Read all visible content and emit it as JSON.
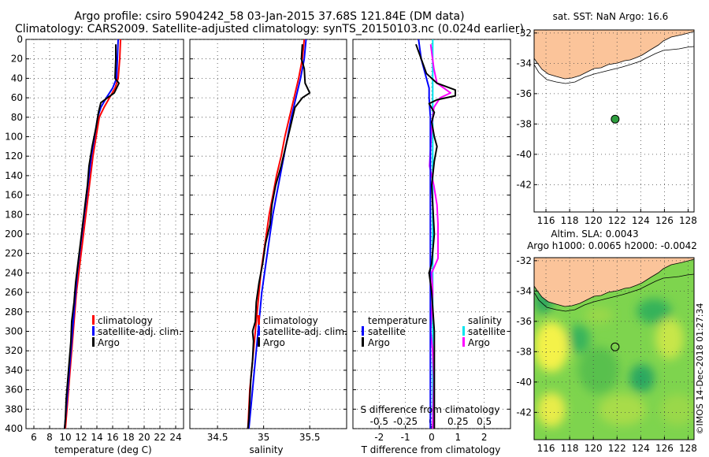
{
  "header": {
    "title_line1": "Argo profile: csiro 5904242_58 03-Jan-2015 37.68S 121.84E (DM data)",
    "title_line2": "Climatology: CARS2009. Satellite-adjusted climatology: synTS_20150103.nc (0.024d earlier)"
  },
  "watermark": "©IMOS 14-Dec-2018 01:27:34",
  "colors": {
    "climatology": "#ff0000",
    "satellite": "#0000ff",
    "argo": "#000000",
    "salinity_satellite": "#00e5ee",
    "salinity_argo": "#ff00ff",
    "land": "#fbc49a",
    "sea_sst": "#ffffff"
  },
  "chart_data": [
    {
      "id": "temperature",
      "type": "line",
      "xlabel": "temperature (deg C)",
      "ylabel": "",
      "xlim": [
        5,
        25
      ],
      "ylim": [
        400,
        0
      ],
      "xticks": [
        6,
        8,
        10,
        12,
        14,
        16,
        18,
        20,
        22,
        24
      ],
      "yticks": [
        0,
        20,
        40,
        60,
        80,
        100,
        120,
        140,
        160,
        180,
        200,
        220,
        240,
        260,
        280,
        300,
        320,
        340,
        360,
        380,
        400
      ],
      "grid": true,
      "legend": [
        "climatology",
        "satellite-adj. clim.",
        "Argo"
      ],
      "series": [
        {
          "name": "climatology",
          "color": "#ff0000",
          "depth": [
            0,
            20,
            40,
            50,
            60,
            70,
            80,
            100,
            120,
            140,
            160,
            180,
            200,
            220,
            240,
            260,
            280,
            300,
            320,
            340,
            360,
            380,
            400
          ],
          "values": [
            17.0,
            16.9,
            16.7,
            16.3,
            15.6,
            14.9,
            14.3,
            13.9,
            13.5,
            13.2,
            12.9,
            12.6,
            12.3,
            12.0,
            11.7,
            11.4,
            11.2,
            11.0,
            10.8,
            10.6,
            10.4,
            10.2,
            10.0
          ]
        },
        {
          "name": "satellite-adj. clim.",
          "color": "#0000ff",
          "depth": [
            0,
            20,
            40,
            50,
            60,
            70,
            80,
            100,
            120,
            140,
            160,
            180,
            200,
            220,
            240,
            260,
            280,
            300,
            320,
            340,
            360,
            380,
            400
          ],
          "values": [
            16.7,
            16.6,
            16.5,
            16.0,
            15.2,
            14.5,
            14.1,
            13.7,
            13.3,
            13.0,
            12.7,
            12.4,
            12.1,
            11.8,
            11.5,
            11.3,
            11.1,
            10.9,
            10.7,
            10.5,
            10.3,
            10.1,
            9.9
          ]
        },
        {
          "name": "Argo",
          "color": "#000000",
          "depth": [
            5,
            20,
            40,
            45,
            55,
            65,
            75,
            90,
            110,
            130,
            150,
            170,
            190,
            210,
            230,
            250,
            270,
            290,
            310,
            330,
            350,
            370,
            390,
            400
          ],
          "values": [
            16.4,
            16.4,
            16.3,
            16.8,
            16.2,
            14.5,
            14.2,
            13.9,
            13.4,
            13.0,
            12.8,
            12.5,
            12.2,
            11.9,
            11.6,
            11.3,
            11.1,
            10.8,
            10.7,
            10.5,
            10.3,
            10.1,
            10.0,
            9.9
          ]
        }
      ]
    },
    {
      "id": "salinity",
      "type": "line",
      "xlabel": "salinity",
      "ylabel": "",
      "xlim": [
        34.2,
        35.9
      ],
      "ylim": [
        400,
        0
      ],
      "xticks": [
        34.5,
        35,
        35.5
      ],
      "xtick_labels": [
        "34.5",
        "35",
        "35.5"
      ],
      "grid": true,
      "legend": [
        "climatology",
        "satellite-adj. clim.",
        "Argo"
      ],
      "series": [
        {
          "name": "climatology",
          "color": "#ff0000",
          "depth": [
            0,
            20,
            40,
            60,
            80,
            100,
            120,
            140,
            160,
            180,
            200,
            220,
            240,
            260,
            280,
            300,
            320,
            340,
            360,
            380,
            400
          ],
          "values": [
            35.44,
            35.42,
            35.38,
            35.33,
            35.28,
            35.23,
            35.19,
            35.14,
            35.1,
            35.06,
            35.03,
            35.0,
            34.97,
            34.95,
            34.93,
            34.91,
            34.89,
            34.87,
            34.85,
            34.84,
            34.83
          ]
        },
        {
          "name": "satellite-adj. clim.",
          "color": "#0000ff",
          "depth": [
            0,
            20,
            40,
            60,
            80,
            100,
            120,
            140,
            160,
            180,
            200,
            220,
            240,
            260,
            280,
            300,
            320,
            340,
            360,
            380,
            400
          ],
          "values": [
            35.46,
            35.44,
            35.4,
            35.35,
            35.3,
            35.26,
            35.22,
            35.18,
            35.14,
            35.1,
            35.07,
            35.04,
            35.01,
            34.98,
            34.96,
            34.94,
            34.92,
            34.9,
            34.88,
            34.86,
            34.84
          ]
        },
        {
          "name": "Argo",
          "color": "#000000",
          "depth": [
            5,
            20,
            30,
            45,
            55,
            60,
            70,
            90,
            110,
            130,
            150,
            170,
            190,
            210,
            230,
            250,
            270,
            290,
            300,
            310,
            330,
            350,
            370,
            390,
            400
          ],
          "values": [
            35.42,
            35.41,
            35.44,
            35.45,
            35.5,
            35.42,
            35.34,
            35.29,
            35.24,
            35.19,
            35.13,
            35.09,
            35.07,
            35.02,
            34.99,
            34.95,
            34.92,
            34.91,
            34.88,
            34.89,
            34.88,
            34.86,
            34.85,
            34.84,
            34.83
          ]
        }
      ]
    },
    {
      "id": "difference",
      "type": "line",
      "xlabel": "T difference from climatology",
      "secondary_xlabel": "S difference from climatology",
      "xlim": [
        -3,
        3
      ],
      "ylim": [
        400,
        0
      ],
      "xticks": [
        -2,
        -1,
        0,
        1,
        2
      ],
      "secondary_xticks": [
        -0.5,
        -0.25,
        0,
        0.25,
        0.5
      ],
      "secondary_xtick_labels": [
        "-0.5",
        "-0.25",
        "0",
        "0.25",
        "0.5"
      ],
      "grid": true,
      "legend_temperature_title": "temperature",
      "legend_salinity_title": "salinity",
      "legend_temperature": [
        "satellite",
        "Argo"
      ],
      "legend_salinity": [
        "satellite",
        "Argo"
      ],
      "series": [
        {
          "name": "T satellite",
          "color": "#0000ff",
          "depth": [
            0,
            20,
            40,
            50,
            60,
            80,
            100,
            150,
            200,
            250,
            300,
            350,
            400
          ],
          "values": [
            -0.5,
            -0.4,
            -0.2,
            -0.1,
            -0.1,
            -0.05,
            -0.05,
            -0.05,
            -0.05,
            -0.05,
            -0.05,
            -0.05,
            -0.05
          ]
        },
        {
          "name": "T Argo",
          "color": "#000000",
          "depth": [
            5,
            20,
            35,
            45,
            52,
            58,
            62,
            66,
            75,
            85,
            100,
            110,
            125,
            150,
            200,
            230,
            240,
            260,
            300,
            350,
            400
          ],
          "values": [
            -0.6,
            -0.4,
            -0.2,
            0.2,
            0.9,
            0.9,
            0.2,
            -0.1,
            0.1,
            0.0,
            0.1,
            0.2,
            0.1,
            0.0,
            0.1,
            0.0,
            -0.1,
            0.0,
            0.1,
            0.1,
            0.1
          ]
        },
        {
          "name": "S satellite",
          "color": "#00e5ee",
          "depth": [
            0,
            50,
            100,
            150,
            200,
            250,
            300,
            350,
            400
          ],
          "values": [
            0.01,
            0.01,
            0.01,
            0.01,
            0.01,
            0.01,
            0.01,
            0.01,
            0.01
          ]
        },
        {
          "name": "S Argo",
          "color": "#ff00ff",
          "depth": [
            5,
            30,
            45,
            55,
            60,
            70,
            90,
            110,
            130,
            150,
            170,
            190,
            210,
            225,
            240,
            260,
            280,
            300,
            320,
            350,
            400
          ],
          "values": [
            -0.01,
            0.02,
            0.05,
            0.18,
            0.08,
            0.02,
            0.0,
            -0.01,
            -0.02,
            0.02,
            0.05,
            0.06,
            0.06,
            0.06,
            0.0,
            0.01,
            0.0,
            -0.01,
            0.01,
            0.02,
            0.01
          ]
        }
      ]
    },
    {
      "id": "sst_map",
      "type": "map",
      "title": "sat. SST: NaN Argo: 16.6",
      "xlim": [
        115,
        128.5
      ],
      "ylim": [
        -43.8,
        -31.8
      ],
      "xticks": [
        116,
        118,
        120,
        122,
        124,
        126,
        128
      ],
      "yticks": [
        -32,
        -34,
        -36,
        -38,
        -40,
        -42
      ],
      "marker": {
        "lon": 121.84,
        "lat": -37.68,
        "fill": "#2e9e3e"
      }
    },
    {
      "id": "sla_map",
      "type": "map",
      "title_line1": "Altim. SLA: 0.0043",
      "title_line2": "Argo h1000: 0.0065 h2000: -0.0042",
      "xlim": [
        115,
        128.5
      ],
      "ylim": [
        -43.8,
        -31.8
      ],
      "xticks": [
        116,
        118,
        120,
        122,
        124,
        126,
        128
      ],
      "yticks": [
        -32,
        -34,
        -36,
        -38,
        -40,
        -42
      ],
      "marker": {
        "lon": 121.84,
        "lat": -37.68,
        "fill": "none"
      }
    }
  ]
}
